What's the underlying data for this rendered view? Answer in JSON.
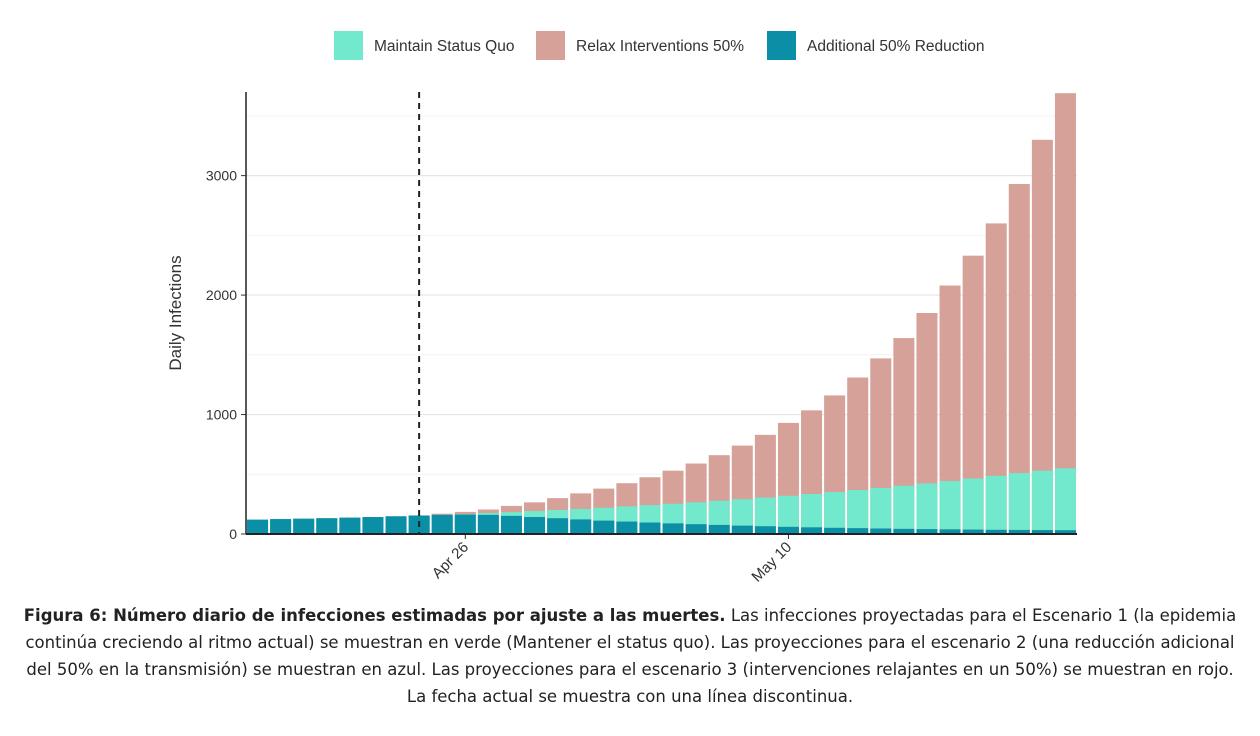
{
  "chart_data": {
    "type": "bar",
    "y_axis_label": "Daily Infections",
    "categories": [
      null,
      null,
      null,
      null,
      null,
      null,
      null,
      null,
      null,
      "Apr 26",
      null,
      null,
      null,
      null,
      null,
      null,
      null,
      null,
      null,
      null,
      null,
      null,
      null,
      "May 10",
      null,
      null,
      null,
      null,
      null,
      null,
      null,
      null,
      null,
      null,
      null,
      null
    ],
    "series": [
      {
        "name": "Maintain Status Quo",
        "color": "#72e8cc",
        "values": [
          120,
          125,
          128,
          132,
          137,
          142,
          148,
          155,
          160,
          167,
          175,
          183,
          192,
          201,
          210,
          220,
          231,
          242,
          253,
          265,
          278,
          291,
          305,
          320,
          335,
          351,
          368,
          385,
          404,
          423,
          443,
          465,
          487,
          510,
          530,
          550
        ]
      },
      {
        "name": "Relax Interventions 50%",
        "color": "#d5a198",
        "values": [
          120,
          125,
          128,
          132,
          137,
          142,
          148,
          155,
          170,
          185,
          205,
          235,
          265,
          300,
          340,
          380,
          425,
          475,
          530,
          590,
          660,
          740,
          830,
          930,
          1035,
          1160,
          1310,
          1470,
          1640,
          1850,
          2080,
          2330,
          2600,
          2930,
          3300,
          3690
        ]
      },
      {
        "name": "Additional 50% Reduction",
        "color": "#0a8fa6",
        "values": [
          120,
          125,
          128,
          132,
          137,
          142,
          148,
          155,
          160,
          163,
          160,
          152,
          142,
          132,
          122,
          112,
          104,
          96,
          89,
          82,
          76,
          70,
          65,
          60,
          56,
          52,
          49,
          46,
          43,
          41,
          39,
          37,
          35,
          34,
          33,
          32
        ]
      }
    ],
    "draw_order": [
      1,
      0,
      2
    ],
    "ylim": [
      0,
      3700
    ],
    "yticks": [
      0,
      1000,
      2000,
      3000
    ],
    "minor_yticks": [
      500,
      1500,
      2500,
      3500
    ],
    "grid": true,
    "vline": {
      "x": 7,
      "style": "dashed"
    },
    "legend": "top"
  },
  "caption": {
    "bold": "Figura 6: Número diario de infecciones estimadas por ajuste a las muertes.",
    "text": " Las infecciones proyectadas para el Escenario 1 (la epidemia continúa creciendo al ritmo actual) se muestran en verde (Mantener el status quo). Las proyecciones para el escenario 2 (una reducción adicional del 50% en la transmisión) se muestran en azul. Las proyecciones para el escenario 3 (intervenciones relajantes en un 50%) se muestran en rojo. La fecha actual se muestra con una línea discontinua."
  }
}
